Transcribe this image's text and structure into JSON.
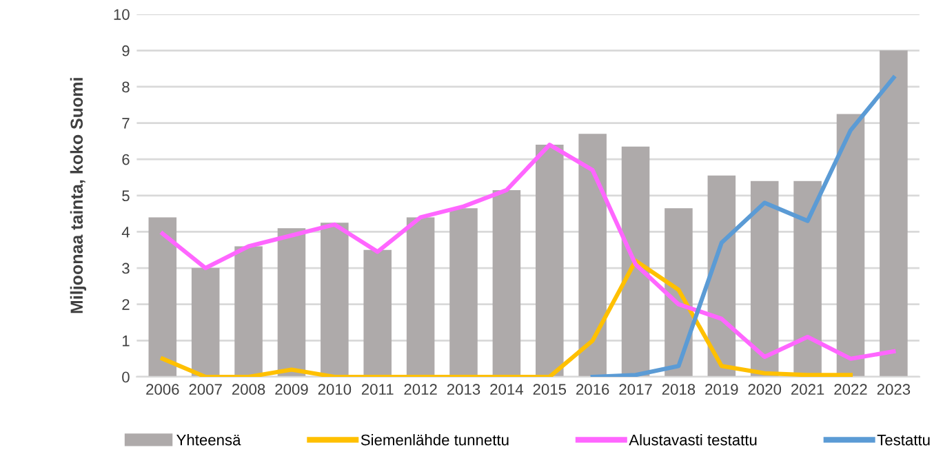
{
  "chart_data": {
    "type": "bar",
    "ylabel": "Miljoonaa tainta, koko Suomi",
    "categories": [
      "2006",
      "2007",
      "2008",
      "2009",
      "2010",
      "2011",
      "2012",
      "2013",
      "2014",
      "2015",
      "2016",
      "2017",
      "2018",
      "2019",
      "2020",
      "2021",
      "2022",
      "2023"
    ],
    "series": [
      {
        "name": "Yhteensä",
        "color": "#aeaaaa",
        "values": [
          4.4,
          3.0,
          3.6,
          4.1,
          4.25,
          3.5,
          4.4,
          4.65,
          5.15,
          6.4,
          6.7,
          6.35,
          4.65,
          5.55,
          5.4,
          5.4,
          7.25,
          9.0
        ]
      },
      {
        "name": "Siemenlähde tunnettu",
        "type": "line",
        "color": "#ffc000",
        "values": [
          0.5,
          0,
          0,
          0.2,
          0,
          0,
          0,
          0,
          0,
          0,
          1.0,
          3.2,
          2.4,
          0.3,
          0.1,
          0.05,
          0.05,
          null
        ]
      },
      {
        "name": "Alustavasti testattu",
        "type": "line",
        "color": "#ff66ff",
        "values": [
          3.95,
          3.0,
          3.6,
          3.9,
          4.2,
          3.45,
          4.4,
          4.7,
          5.15,
          6.4,
          5.7,
          3.1,
          2.0,
          1.6,
          0.55,
          1.1,
          0.5,
          0.7
        ]
      },
      {
        "name": "Testattu",
        "type": "line",
        "color": "#5b9bd5",
        "values": [
          null,
          null,
          null,
          null,
          null,
          null,
          null,
          null,
          null,
          null,
          0,
          0.05,
          0.3,
          3.7,
          4.8,
          4.3,
          6.8,
          8.25
        ]
      }
    ],
    "ylim": [
      0,
      10
    ],
    "yticks": [
      0,
      1,
      2,
      3,
      4,
      5,
      6,
      7,
      8,
      9,
      10
    ],
    "grid": "y",
    "legend": "bottom",
    "marker": "none",
    "line_style": "solid"
  }
}
